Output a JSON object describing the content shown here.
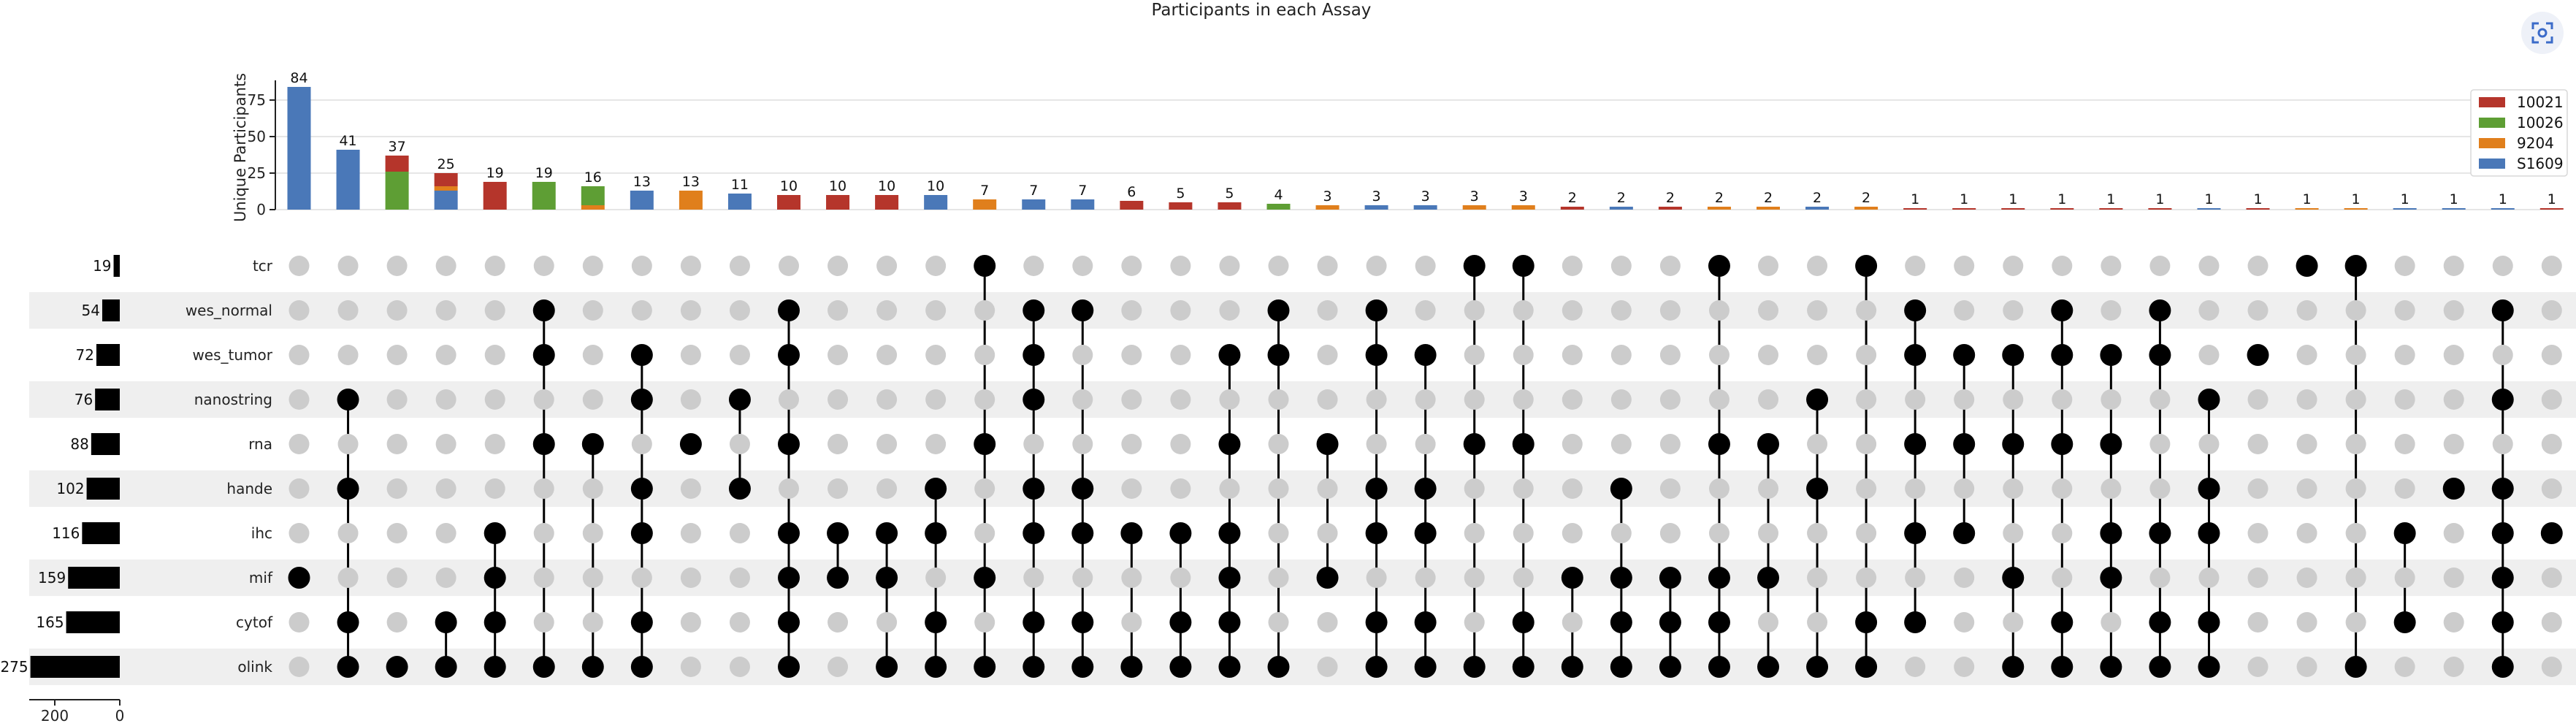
{
  "chart_data": {
    "type": "bar",
    "title": "Participants in each Assay",
    "ylabel": "Unique Participants",
    "ylim": [
      0,
      90
    ],
    "yticks": [
      0,
      25,
      50,
      75
    ],
    "set_size_xticks": [
      200,
      0
    ],
    "legend": {
      "placement": "top-right",
      "entries": [
        {
          "name": "10021",
          "color": "#b5352b"
        },
        {
          "name": "10026",
          "color": "#5e9e34"
        },
        {
          "name": "9204",
          "color": "#e07f1c"
        },
        {
          "name": "S1609",
          "color": "#4a78b8"
        }
      ]
    },
    "sets": [
      {
        "name": "tcr",
        "size": 19
      },
      {
        "name": "wes_normal",
        "size": 54
      },
      {
        "name": "wes_tumor",
        "size": 72
      },
      {
        "name": "nanostring",
        "size": 76
      },
      {
        "name": "rna",
        "size": 88
      },
      {
        "name": "hande",
        "size": 102
      },
      {
        "name": "ihc",
        "size": 116
      },
      {
        "name": "mif",
        "size": 159
      },
      {
        "name": "cytof",
        "size": 165
      },
      {
        "name": "olink",
        "size": 275
      }
    ],
    "intersections": [
      {
        "total": 84,
        "sets": [
          "mif"
        ],
        "series": {
          "S1609": 84
        }
      },
      {
        "total": 41,
        "sets": [
          "nanostring",
          "hande",
          "cytof",
          "olink"
        ],
        "series": {
          "S1609": 41
        }
      },
      {
        "total": 37,
        "sets": [
          "olink"
        ],
        "series": {
          "10026": 26,
          "10021": 11
        }
      },
      {
        "total": 25,
        "sets": [
          "cytof",
          "olink"
        ],
        "series": {
          "S1609": 13,
          "9204": 3,
          "10021": 9
        }
      },
      {
        "total": 19,
        "sets": [
          "ihc",
          "mif",
          "cytof",
          "olink"
        ],
        "series": {
          "10021": 19
        }
      },
      {
        "total": 19,
        "sets": [
          "wes_normal",
          "wes_tumor",
          "rna",
          "olink"
        ],
        "series": {
          "10026": 19
        }
      },
      {
        "total": 16,
        "sets": [
          "rna",
          "olink"
        ],
        "series": {
          "9204": 3,
          "10026": 13
        }
      },
      {
        "total": 13,
        "sets": [
          "wes_tumor",
          "nanostring",
          "hande",
          "ihc",
          "cytof",
          "olink"
        ],
        "series": {
          "S1609": 13
        }
      },
      {
        "total": 13,
        "sets": [
          "rna"
        ],
        "series": {
          "9204": 13
        }
      },
      {
        "total": 11,
        "sets": [
          "nanostring",
          "hande"
        ],
        "series": {
          "S1609": 11
        }
      },
      {
        "total": 10,
        "sets": [
          "wes_normal",
          "wes_tumor",
          "rna",
          "ihc",
          "mif",
          "cytof",
          "olink"
        ],
        "series": {
          "10021": 10
        }
      },
      {
        "total": 10,
        "sets": [
          "ihc",
          "mif"
        ],
        "series": {
          "10021": 10
        }
      },
      {
        "total": 10,
        "sets": [
          "ihc",
          "mif",
          "olink"
        ],
        "series": {
          "10021": 10
        }
      },
      {
        "total": 10,
        "sets": [
          "hande",
          "ihc",
          "cytof",
          "olink"
        ],
        "series": {
          "S1609": 10
        }
      },
      {
        "total": 7,
        "sets": [
          "tcr",
          "rna",
          "mif",
          "olink"
        ],
        "series": {
          "9204": 7
        }
      },
      {
        "total": 7,
        "sets": [
          "wes_normal",
          "wes_tumor",
          "nanostring",
          "hande",
          "ihc",
          "cytof",
          "olink"
        ],
        "series": {
          "S1609": 7
        }
      },
      {
        "total": 7,
        "sets": [
          "wes_normal",
          "hande",
          "ihc",
          "cytof",
          "olink"
        ],
        "series": {
          "S1609": 7
        }
      },
      {
        "total": 6,
        "sets": [
          "ihc",
          "olink"
        ],
        "series": {
          "10021": 6
        }
      },
      {
        "total": 5,
        "sets": [
          "ihc",
          "cytof",
          "olink"
        ],
        "series": {
          "10021": 5
        }
      },
      {
        "total": 5,
        "sets": [
          "wes_tumor",
          "rna",
          "ihc",
          "mif",
          "cytof",
          "olink"
        ],
        "series": {
          "10021": 5
        }
      },
      {
        "total": 4,
        "sets": [
          "wes_normal",
          "wes_tumor",
          "olink"
        ],
        "series": {
          "10026": 4
        }
      },
      {
        "total": 3,
        "sets": [
          "rna",
          "mif"
        ],
        "series": {
          "9204": 3
        }
      },
      {
        "total": 3,
        "sets": [
          "wes_normal",
          "wes_tumor",
          "hande",
          "ihc",
          "cytof",
          "olink"
        ],
        "series": {
          "S1609": 3
        }
      },
      {
        "total": 3,
        "sets": [
          "wes_tumor",
          "hande",
          "ihc",
          "cytof",
          "olink"
        ],
        "series": {
          "S1609": 3
        }
      },
      {
        "total": 3,
        "sets": [
          "tcr",
          "rna",
          "olink"
        ],
        "series": {
          "9204": 3
        }
      },
      {
        "total": 3,
        "sets": [
          "tcr",
          "rna",
          "cytof",
          "olink"
        ],
        "series": {
          "9204": 3
        }
      },
      {
        "total": 2,
        "sets": [
          "mif",
          "olink"
        ],
        "series": {
          "10021": 2
        }
      },
      {
        "total": 2,
        "sets": [
          "hande",
          "mif",
          "cytof",
          "olink"
        ],
        "series": {
          "S1609": 2
        }
      },
      {
        "total": 2,
        "sets": [
          "mif",
          "cytof",
          "olink"
        ],
        "series": {
          "10021": 2
        }
      },
      {
        "total": 2,
        "sets": [
          "tcr",
          "rna",
          "mif",
          "cytof",
          "olink"
        ],
        "series": {
          "9204": 2
        }
      },
      {
        "total": 2,
        "sets": [
          "rna",
          "mif",
          "olink"
        ],
        "series": {
          "9204": 2
        }
      },
      {
        "total": 2,
        "sets": [
          "nanostring",
          "hande",
          "olink"
        ],
        "series": {
          "S1609": 2
        }
      },
      {
        "total": 2,
        "sets": [
          "tcr",
          "cytof",
          "olink"
        ],
        "series": {
          "9204": 2
        }
      },
      {
        "total": 1,
        "sets": [
          "wes_normal",
          "wes_tumor",
          "rna",
          "ihc",
          "cytof"
        ],
        "series": {
          "10021": 1
        }
      },
      {
        "total": 1,
        "sets": [
          "wes_tumor",
          "rna",
          "ihc"
        ],
        "series": {
          "10021": 1
        }
      },
      {
        "total": 1,
        "sets": [
          "wes_tumor",
          "rna",
          "mif",
          "olink"
        ],
        "series": {
          "10021": 1
        }
      },
      {
        "total": 1,
        "sets": [
          "wes_normal",
          "wes_tumor",
          "rna",
          "cytof",
          "olink"
        ],
        "series": {
          "10021": 1
        }
      },
      {
        "total": 1,
        "sets": [
          "wes_tumor",
          "rna",
          "ihc",
          "mif",
          "olink"
        ],
        "series": {
          "10021": 1
        }
      },
      {
        "total": 1,
        "sets": [
          "wes_normal",
          "wes_tumor",
          "ihc",
          "cytof",
          "olink"
        ],
        "series": {
          "10021": 1
        }
      },
      {
        "total": 1,
        "sets": [
          "nanostring",
          "hande",
          "ihc",
          "cytof",
          "olink"
        ],
        "series": {
          "S1609": 1
        }
      },
      {
        "total": 1,
        "sets": [
          "wes_tumor"
        ],
        "series": {
          "10021": 1
        }
      },
      {
        "total": 1,
        "sets": [
          "tcr"
        ],
        "series": {
          "9204": 1
        }
      },
      {
        "total": 1,
        "sets": [
          "tcr",
          "olink"
        ],
        "series": {
          "9204": 1
        }
      },
      {
        "total": 1,
        "sets": [
          "ihc",
          "cytof"
        ],
        "series": {
          "S1609": 1
        }
      },
      {
        "total": 1,
        "sets": [
          "hande"
        ],
        "series": {
          "S1609": 1
        }
      },
      {
        "total": 1,
        "sets": [
          "wes_normal",
          "nanostring",
          "hande",
          "ihc",
          "mif",
          "cytof",
          "olink"
        ],
        "series": {
          "S1609": 1
        }
      },
      {
        "total": 1,
        "sets": [
          "ihc"
        ],
        "series": {
          "10021": 1
        }
      }
    ]
  },
  "ui": {
    "expand_icon": "expand-frame-icon",
    "accent": "#3b6bc9"
  }
}
